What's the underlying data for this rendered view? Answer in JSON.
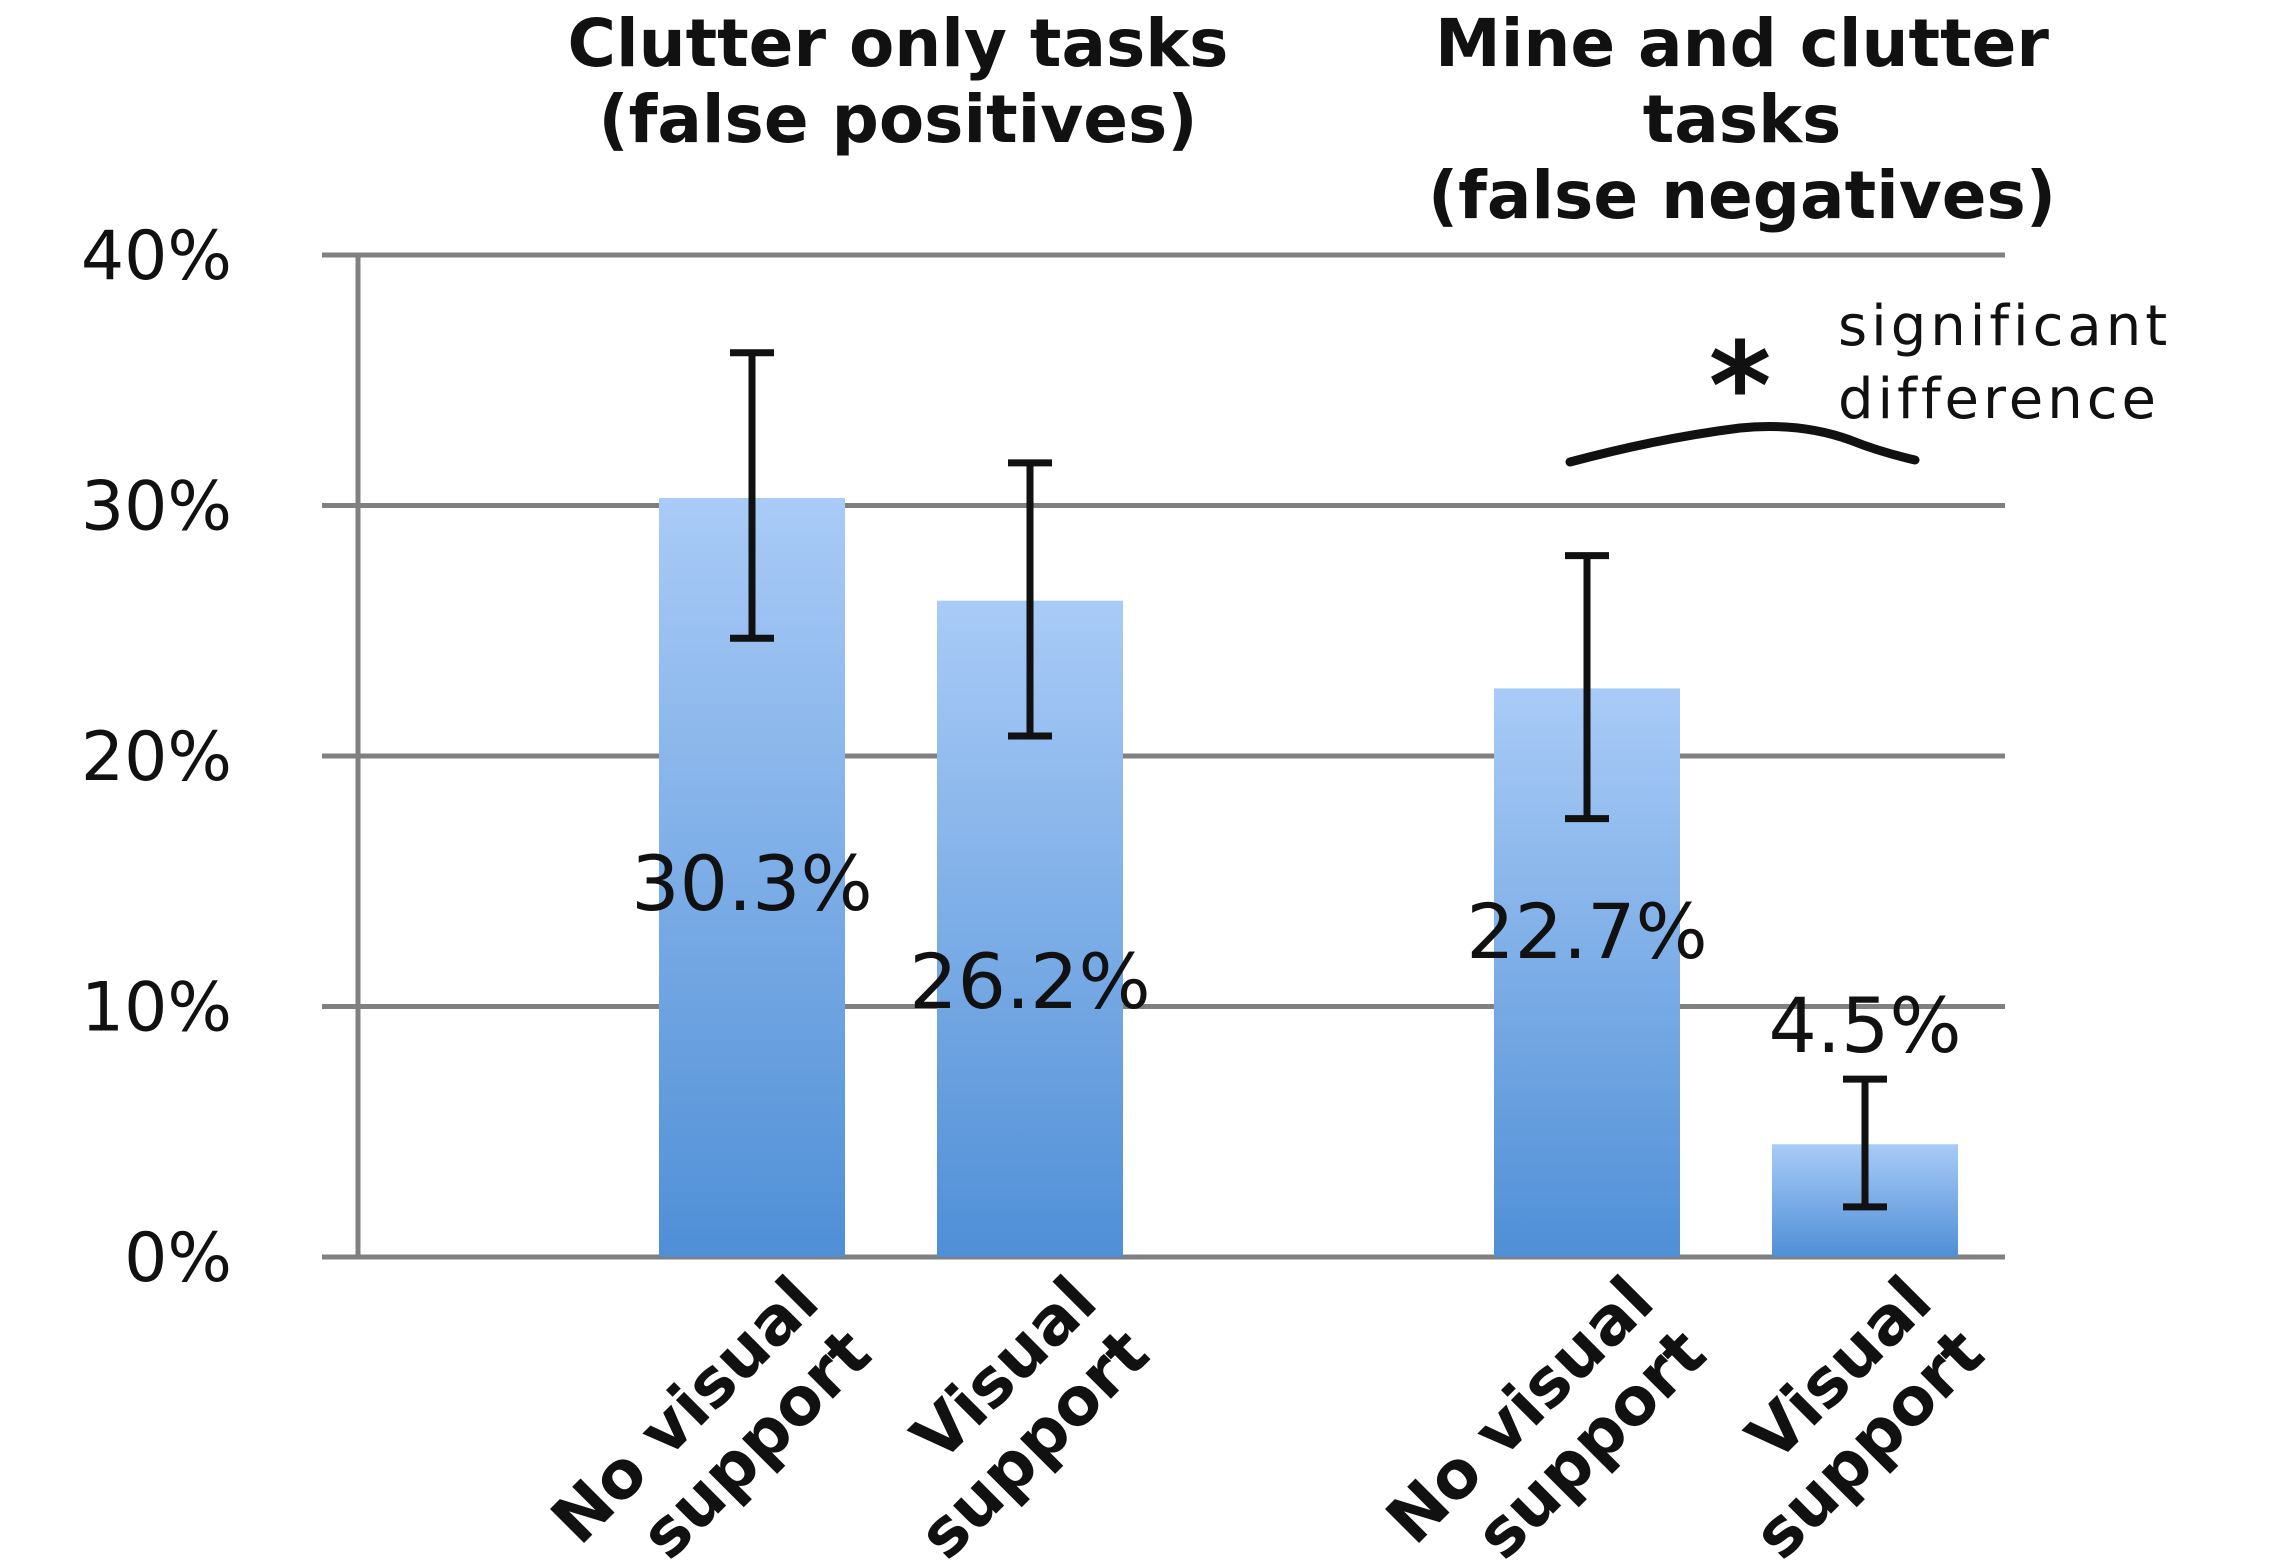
{
  "chart_data": {
    "type": "bar",
    "groups": [
      {
        "title_lines": [
          "Clutter only tasks",
          "(false positives)"
        ],
        "bars": [
          {
            "category_lines": [
              "No visual",
              "support"
            ],
            "value": 30.3,
            "label": "30.3%",
            "error_low": 24.7,
            "error_high": 36.1
          },
          {
            "category_lines": [
              "Visual",
              "support"
            ],
            "value": 26.2,
            "label": "26.2%",
            "error_low": 20.8,
            "error_high": 31.7
          }
        ]
      },
      {
        "title_lines": [
          "Mine and clutter",
          "tasks",
          "(false negatives)"
        ],
        "bars": [
          {
            "category_lines": [
              "No visual",
              "support"
            ],
            "value": 22.7,
            "label": "22.7%",
            "error_low": 17.5,
            "error_high": 28.0
          },
          {
            "category_lines": [
              "Visual",
              "support"
            ],
            "value": 4.5,
            "label": "4.5%",
            "error_low": 2.0,
            "error_high": 7.1
          }
        ]
      }
    ],
    "y_ticks": [
      "0%",
      "10%",
      "20%",
      "30%",
      "40%"
    ],
    "ylim": [
      0,
      40
    ],
    "grid": true,
    "annotation": {
      "symbol": "*",
      "text_lines": [
        "significant",
        "difference"
      ]
    },
    "colors": {
      "bar_top": "#a9cbf7",
      "bar_bottom": "#4f8fd6",
      "grid": "#808080",
      "error": "#111111"
    }
  }
}
